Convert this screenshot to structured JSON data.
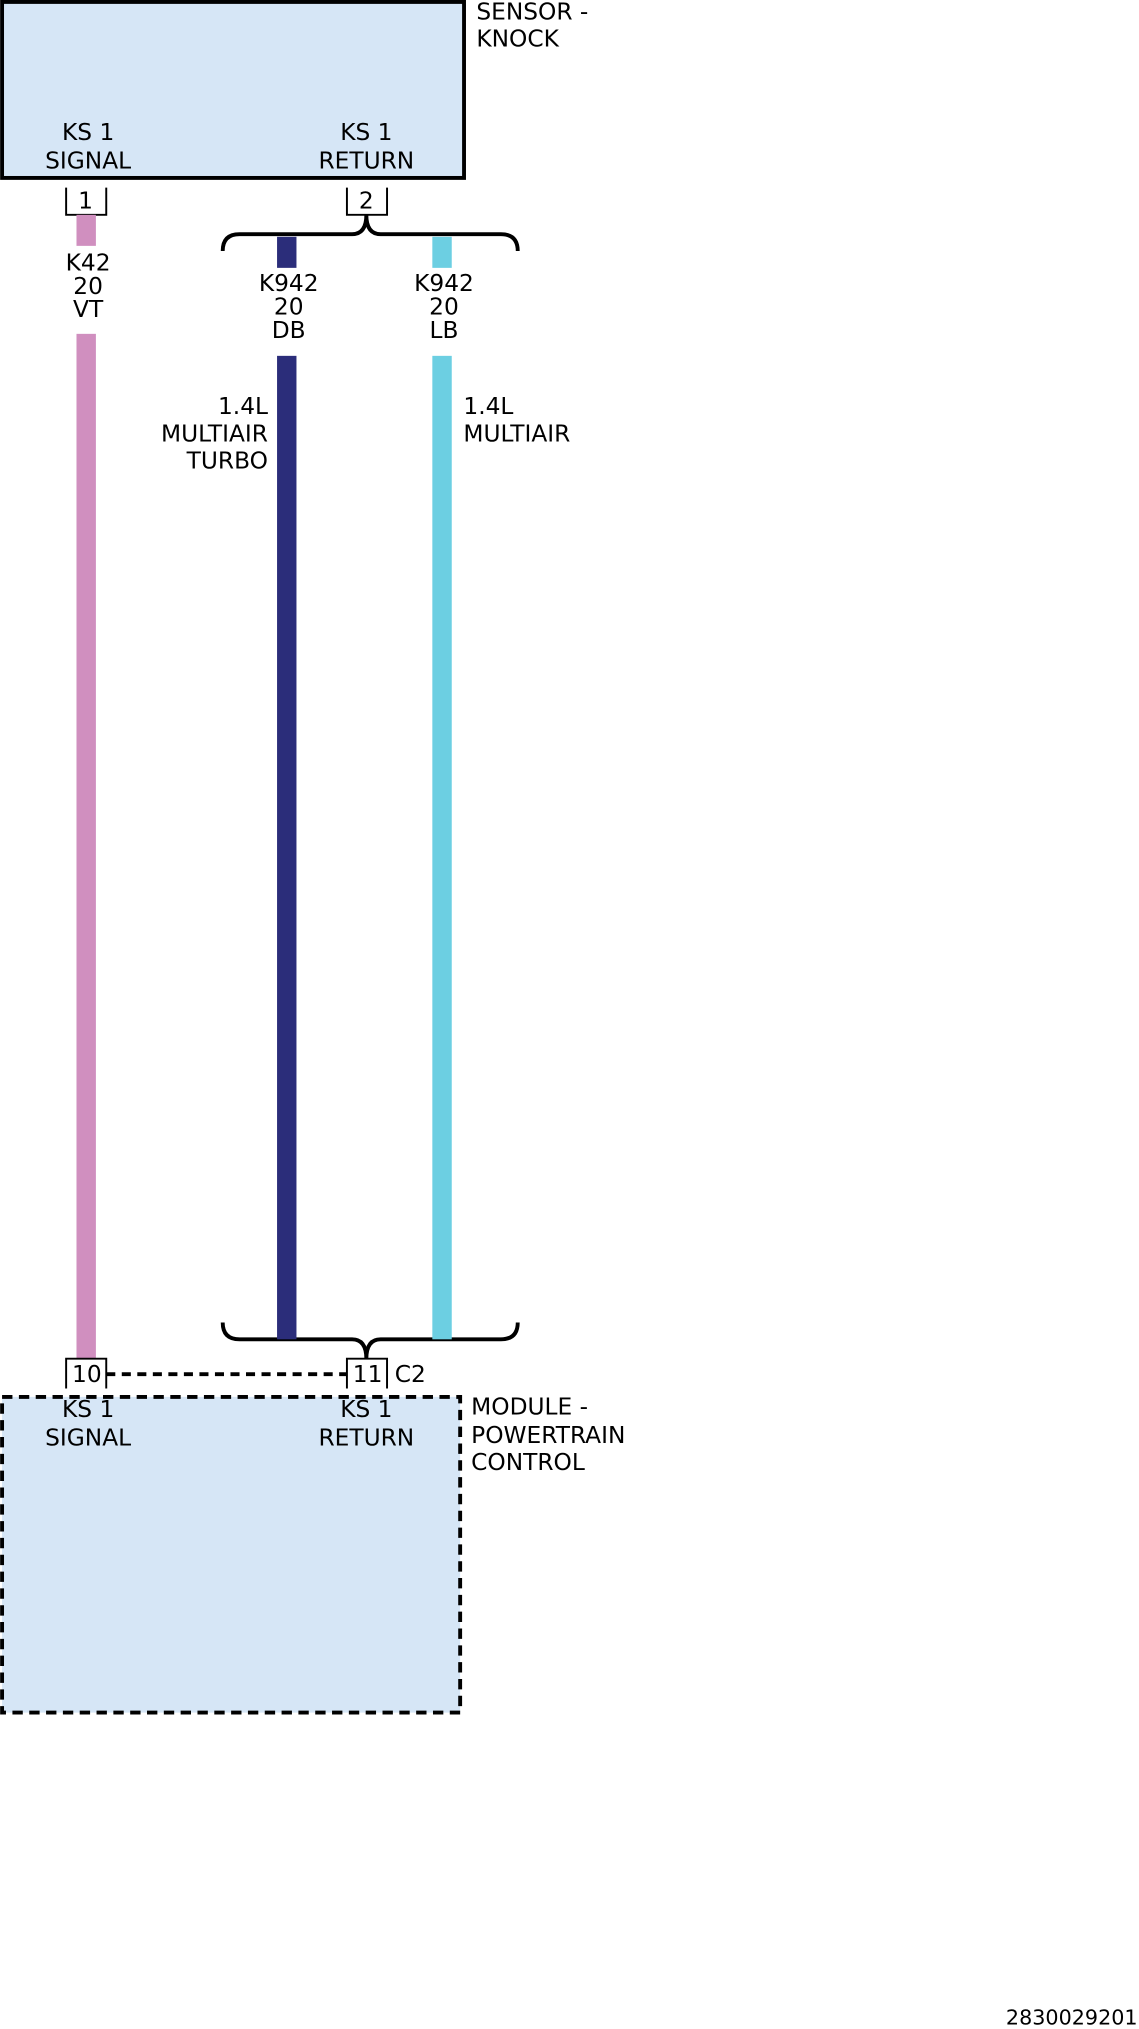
{
  "sensor": {
    "name_lines": [
      "SENSOR -",
      "KNOCK"
    ],
    "pins": [
      {
        "label_lines": [
          "KS 1",
          "SIGNAL"
        ],
        "number": 1
      },
      {
        "label_lines": [
          "KS 1",
          "RETURN"
        ],
        "number": 2
      }
    ]
  },
  "module": {
    "name_lines": [
      "MODULE -",
      "POWERTRAIN",
      "CONTROL"
    ],
    "connector": "C2",
    "pins": [
      {
        "label_lines": [
          "KS 1",
          "SIGNAL"
        ],
        "number": 10
      },
      {
        "label_lines": [
          "KS 1",
          "RETURN"
        ],
        "number": 11
      }
    ]
  },
  "wires": [
    {
      "circuit": "K42",
      "gauge": 20,
      "color": "VT"
    },
    {
      "circuit": "K942",
      "gauge": 20,
      "color": "DB",
      "note_lines": [
        "1.4L",
        "MULTIAIR",
        "TURBO"
      ]
    },
    {
      "circuit": "K942",
      "gauge": 20,
      "color": "LB",
      "note_lines": [
        "1.4L",
        "MULTIAIR"
      ]
    }
  ],
  "figure_id": "2830029201"
}
